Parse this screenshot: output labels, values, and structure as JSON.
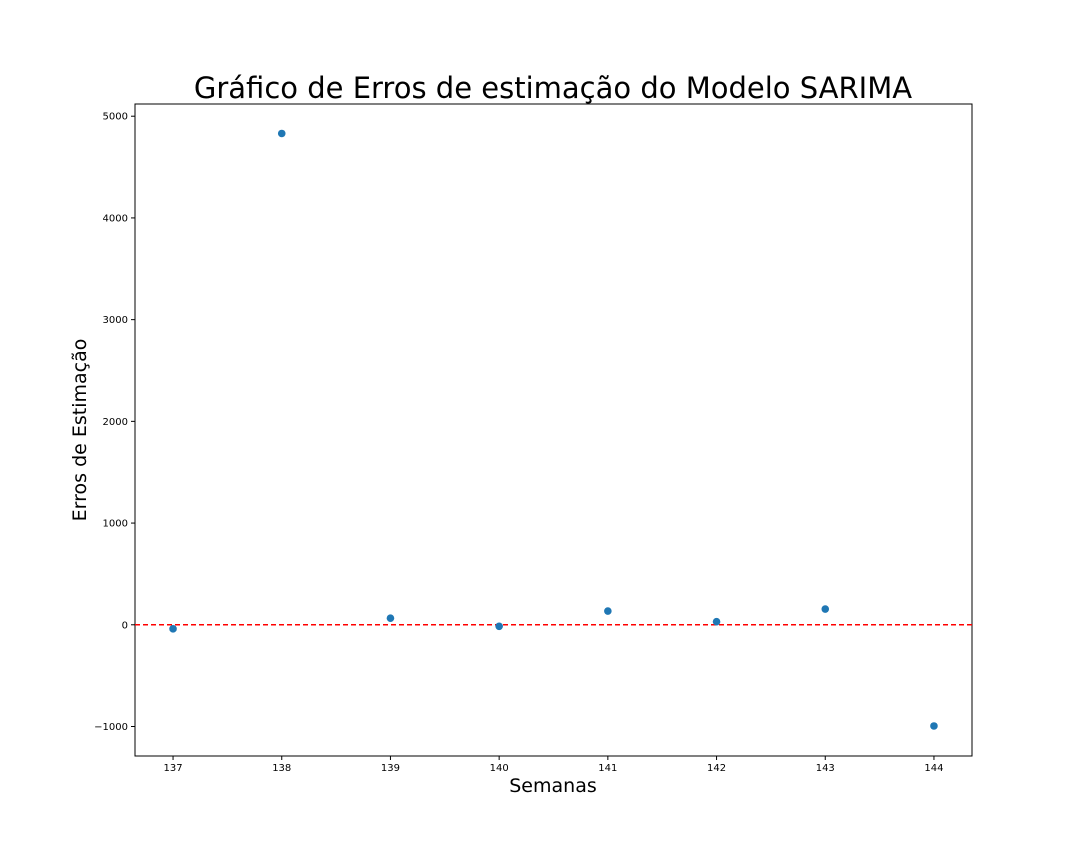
{
  "chart_data": {
    "type": "scatter",
    "title": "Gráfico de Erros de estimação do Modelo SARIMA",
    "xlabel": "Semanas",
    "ylabel": "Erros de Estimação",
    "xlim": [
      136.65,
      144.35
    ],
    "ylim": [
      -1290,
      5120
    ],
    "x_ticks": [
      137,
      138,
      139,
      140,
      141,
      142,
      143,
      144
    ],
    "y_ticks": [
      -1000,
      0,
      1000,
      2000,
      3000,
      4000,
      5000
    ],
    "x_tick_labels": [
      "137",
      "138",
      "139",
      "140",
      "141",
      "142",
      "143",
      "144"
    ],
    "y_tick_labels": [
      "−1000",
      "0",
      "1000",
      "2000",
      "3000",
      "4000",
      "5000"
    ],
    "grid": false,
    "series": [
      {
        "x": [
          137,
          138,
          139,
          140,
          141,
          142,
          143,
          144
        ],
        "y": [
          -40,
          4830,
          65,
          -15,
          135,
          30,
          155,
          -995
        ],
        "color": "#1f77b4"
      }
    ],
    "reference_line": {
      "y": 0,
      "color": "#ff0000",
      "style": "dashed"
    }
  }
}
